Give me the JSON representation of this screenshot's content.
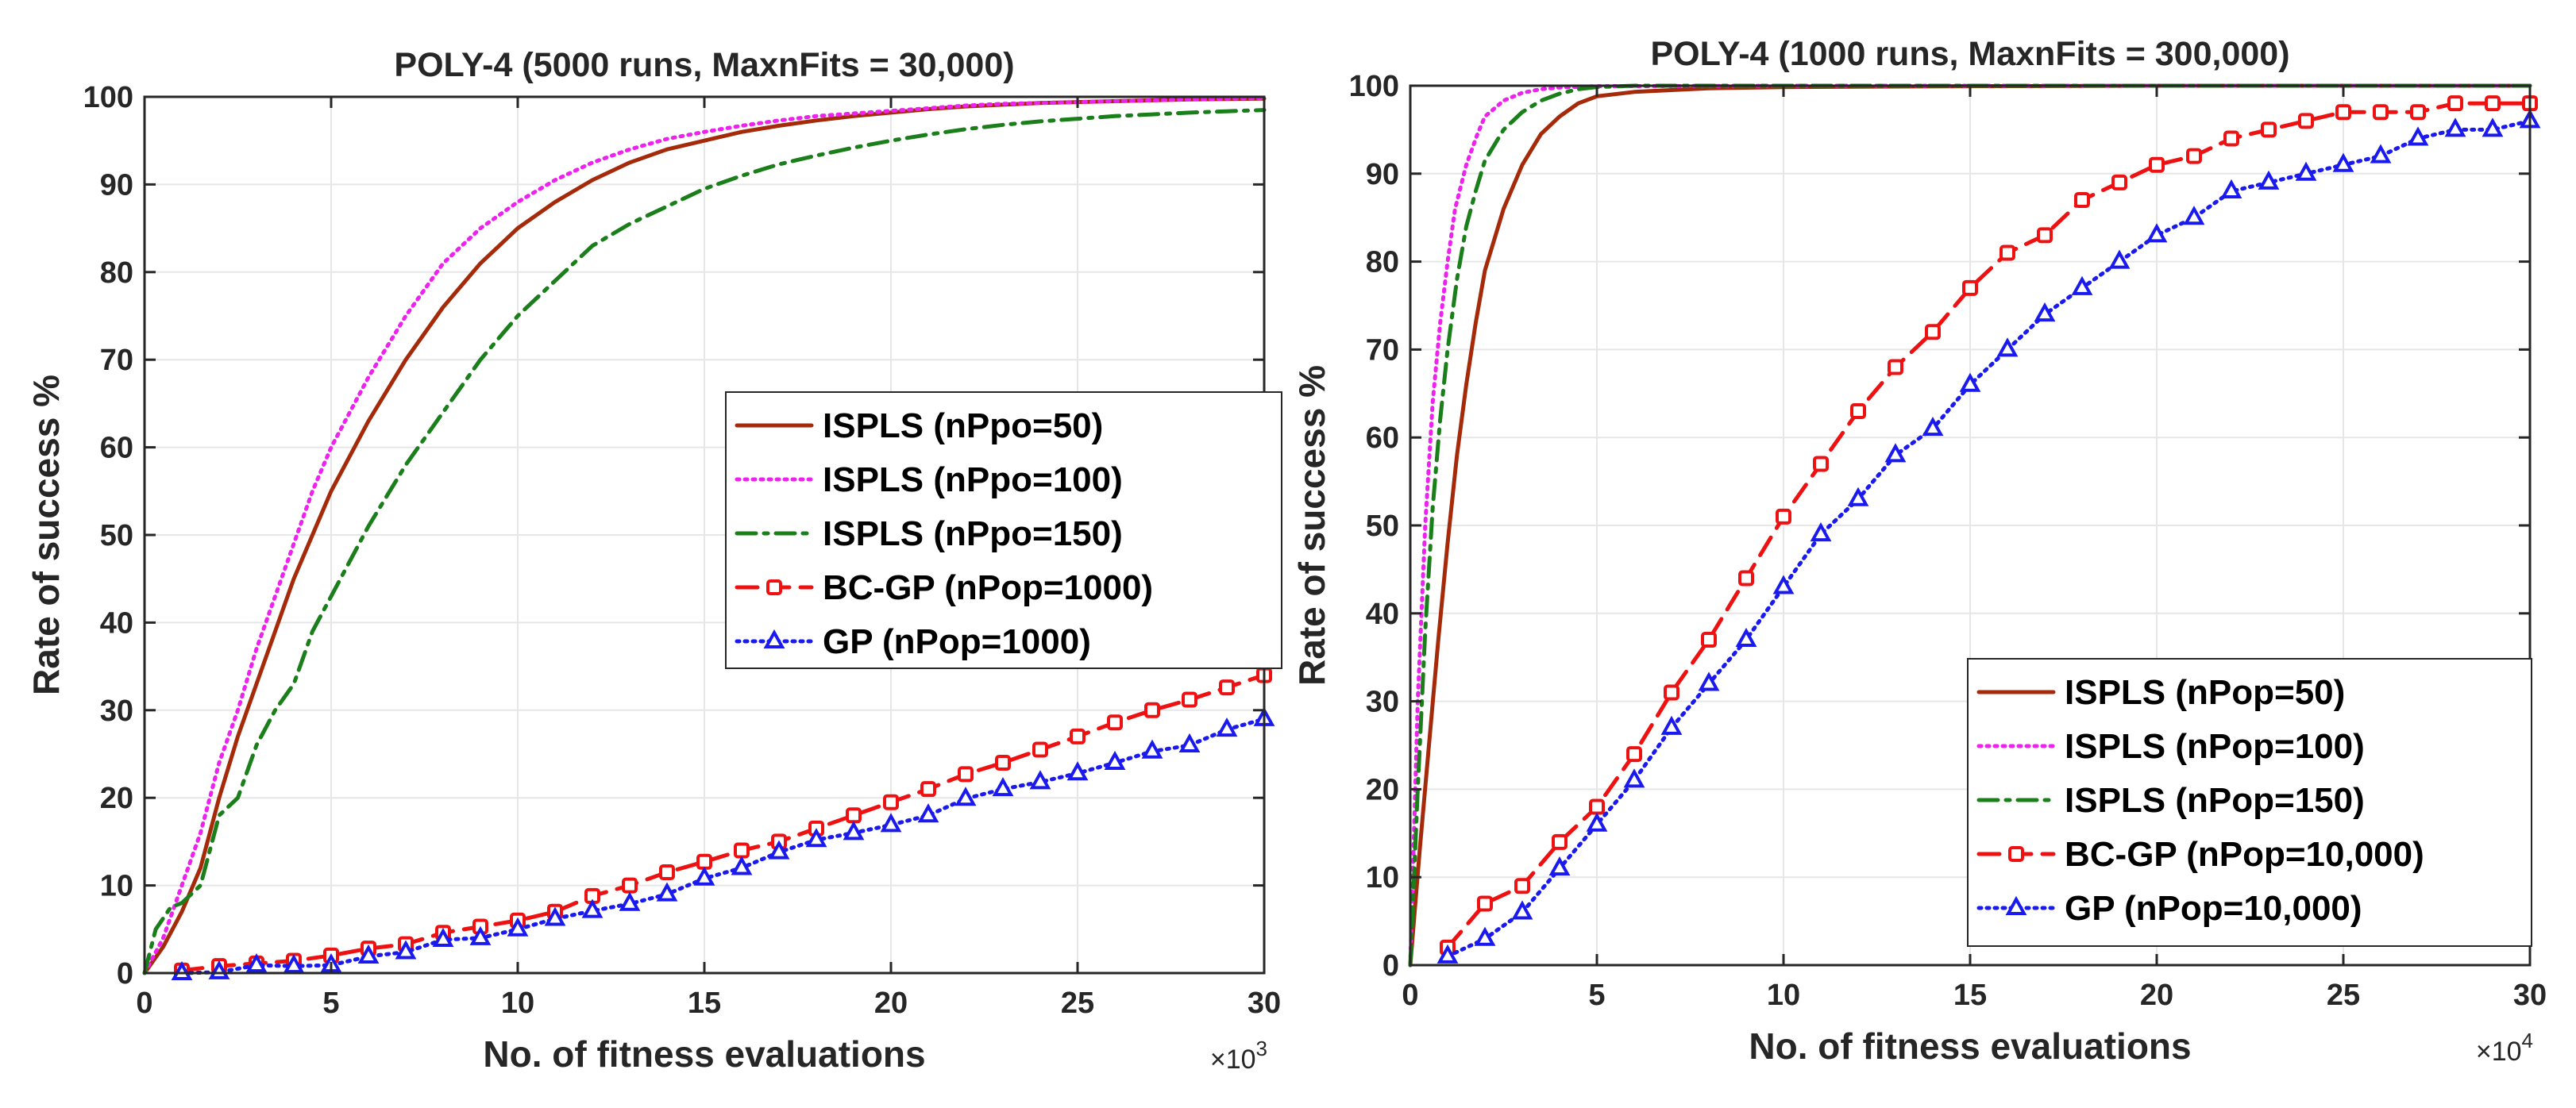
{
  "chart_data": [
    {
      "type": "line",
      "title": "POLY-4 (5000 runs, MaxnFits = 30,000)",
      "xlabel": "No. of fitness evaluations",
      "ylabel": "Rate of success %",
      "x_multiplier": "×10",
      "x_multiplier_exp": "3",
      "xlim": [
        0,
        30
      ],
      "ylim": [
        0,
        100
      ],
      "xticks": [
        0,
        5,
        10,
        15,
        20,
        25,
        30
      ],
      "yticks": [
        0,
        10,
        20,
        30,
        40,
        50,
        60,
        70,
        80,
        90,
        100
      ],
      "grid": true,
      "legend_position": "center-right",
      "series": [
        {
          "name": "ISPLS (nPpo=50)",
          "color": "#a52a0a",
          "style": "solid",
          "marker": "none",
          "x": [
            0,
            0.5,
            1,
            1.5,
            2,
            2.5,
            3,
            3.5,
            4,
            4.5,
            5,
            6,
            7,
            8,
            9,
            10,
            11,
            12,
            13,
            14,
            15,
            16,
            17,
            18,
            19,
            20,
            21,
            22,
            23,
            24,
            25,
            26,
            27,
            28,
            29,
            30
          ],
          "y": [
            0,
            3,
            7,
            12,
            20,
            27,
            33,
            39,
            45,
            50,
            55,
            63,
            70,
            76,
            81,
            85,
            88,
            90.5,
            92.5,
            94,
            95,
            96,
            96.7,
            97.3,
            97.8,
            98.2,
            98.6,
            98.9,
            99.1,
            99.3,
            99.4,
            99.5,
            99.6,
            99.7,
            99.75,
            99.8
          ]
        },
        {
          "name": "ISPLS (nPpo=100)",
          "color": "#ee22ee",
          "style": "dotted",
          "marker": "none",
          "x": [
            0,
            0.5,
            1,
            1.5,
            2,
            2.5,
            3,
            3.5,
            4,
            4.5,
            5,
            6,
            7,
            8,
            9,
            10,
            11,
            12,
            13,
            14,
            15,
            16,
            17,
            18,
            19,
            20,
            21,
            22,
            23,
            24,
            25,
            26,
            27,
            28,
            29,
            30
          ],
          "y": [
            0,
            4,
            10,
            16,
            24,
            30,
            37,
            43,
            49,
            55,
            60,
            68,
            75,
            81,
            85,
            88,
            90.5,
            92.5,
            94,
            95.2,
            96,
            96.7,
            97.3,
            97.8,
            98.1,
            98.4,
            98.7,
            99,
            99.2,
            99.3,
            99.4,
            99.5,
            99.6,
            99.7,
            99.8,
            99.85
          ]
        },
        {
          "name": "ISPLS (nPpo=150)",
          "color": "#1a7f1a",
          "style": "dashdot",
          "marker": "none",
          "x": [
            0,
            0.3,
            0.7,
            1,
            1.5,
            2,
            2.5,
            3,
            3.5,
            4,
            4.5,
            5,
            6,
            7,
            8,
            9,
            10,
            11,
            12,
            13,
            14,
            15,
            16,
            17,
            18,
            19,
            20,
            21,
            22,
            23,
            24,
            25,
            26,
            27,
            28,
            29,
            30
          ],
          "y": [
            0,
            5,
            7.5,
            8,
            10,
            18,
            20,
            26,
            30,
            33,
            39,
            43,
            51,
            58,
            64,
            70,
            75,
            79,
            83,
            85.5,
            87.5,
            89.5,
            91,
            92.3,
            93.3,
            94.2,
            95,
            95.7,
            96.3,
            96.8,
            97.2,
            97.5,
            97.8,
            98,
            98.2,
            98.35,
            98.5
          ]
        },
        {
          "name": "BC-GP (nPop=1000)",
          "color": "#ee1111",
          "style": "dashed",
          "marker": "square",
          "x": [
            1,
            2,
            3,
            4,
            5,
            6,
            7,
            8,
            9,
            10,
            11,
            12,
            13,
            14,
            15,
            16,
            17,
            18,
            19,
            20,
            21,
            22,
            23,
            24,
            25,
            26,
            27,
            28,
            29,
            30
          ],
          "y": [
            0.3,
            0.8,
            1.1,
            1.4,
            2,
            2.8,
            3.3,
            4.6,
            5.3,
            6,
            7,
            8.8,
            10,
            11.5,
            12.7,
            14,
            15,
            16.5,
            18,
            19.5,
            21,
            22.7,
            24,
            25.5,
            27,
            28.6,
            30,
            31.2,
            32.6,
            34
          ]
        },
        {
          "name": "GP (nPop=1000)",
          "color": "#1a1aee",
          "style": "dotted",
          "marker": "triangle",
          "x": [
            1,
            2,
            3,
            4,
            5,
            6,
            7,
            8,
            9,
            10,
            11,
            12,
            13,
            14,
            15,
            16,
            17,
            18,
            19,
            20,
            21,
            22,
            23,
            24,
            25,
            26,
            27,
            28,
            29,
            30
          ],
          "y": [
            0,
            0.1,
            0.9,
            0.8,
            0.9,
            1.9,
            2.4,
            3.8,
            4,
            5,
            6.2,
            7.1,
            7.9,
            9,
            10.8,
            12,
            13.8,
            15.2,
            16,
            16.9,
            18,
            19.9,
            21,
            21.8,
            22.8,
            24,
            25.3,
            26,
            27.8,
            29
          ]
        }
      ]
    },
    {
      "type": "line",
      "title": "POLY-4 (1000 runs, MaxnFits = 300,000)",
      "xlabel": "No. of fitness evaluations",
      "ylabel": "Rate of success %",
      "x_multiplier": "×10",
      "x_multiplier_exp": "4",
      "xlim": [
        0,
        30
      ],
      "ylim": [
        0,
        100
      ],
      "xticks": [
        0,
        5,
        10,
        15,
        20,
        25,
        30
      ],
      "yticks": [
        0,
        10,
        20,
        30,
        40,
        50,
        60,
        70,
        80,
        90,
        100
      ],
      "grid": true,
      "legend_position": "bottom-right",
      "series": [
        {
          "name": "ISPLS (nPop=50)",
          "color": "#a52a0a",
          "style": "solid",
          "marker": "none",
          "x": [
            0,
            0.25,
            0.5,
            0.75,
            1,
            1.25,
            1.5,
            1.75,
            2,
            2.5,
            3,
            3.5,
            4,
            4.5,
            5,
            6,
            7,
            8,
            10,
            15,
            20,
            25,
            30
          ],
          "y": [
            0,
            13,
            25,
            37,
            48,
            58,
            66,
            73,
            79,
            86,
            91,
            94.5,
            96.5,
            98,
            98.8,
            99.3,
            99.5,
            99.7,
            99.85,
            99.95,
            100,
            100,
            100
          ]
        },
        {
          "name": "ISPLS (nPop=100)",
          "color": "#ee22ee",
          "style": "dotted",
          "marker": "none",
          "x": [
            0,
            0.2,
            0.4,
            0.6,
            0.8,
            1,
            1.2,
            1.5,
            1.8,
            2,
            2.5,
            3,
            3.5,
            4,
            5,
            10,
            20,
            30
          ],
          "y": [
            0,
            30,
            50,
            64,
            73,
            80,
            86,
            91,
            94.5,
            96.5,
            98.3,
            99.2,
            99.6,
            99.8,
            99.95,
            100,
            100,
            100
          ]
        },
        {
          "name": "ISPLS (nPop=150)",
          "color": "#1a7f1a",
          "style": "dashdot",
          "marker": "none",
          "x": [
            0,
            0.2,
            0.4,
            0.6,
            0.8,
            1,
            1.25,
            1.5,
            1.75,
            2,
            2.5,
            3,
            3.5,
            4,
            4.5,
            5,
            6,
            10,
            20,
            30
          ],
          "y": [
            0,
            20,
            38,
            52,
            62,
            70,
            78,
            84,
            88,
            91.5,
            95,
            97,
            98.3,
            99.1,
            99.6,
            99.85,
            100,
            100,
            100,
            100
          ]
        },
        {
          "name": "BC-GP (nPop=10,000)",
          "color": "#ee1111",
          "style": "dashed",
          "marker": "square",
          "x": [
            1,
            2,
            3,
            4,
            5,
            6,
            7,
            8,
            9,
            10,
            11,
            12,
            13,
            14,
            15,
            16,
            17,
            18,
            19,
            20,
            21,
            22,
            23,
            24,
            25,
            26,
            27,
            28,
            29,
            30
          ],
          "y": [
            2,
            7,
            9,
            14,
            18,
            24,
            31,
            37,
            44,
            51,
            57,
            63,
            68,
            72,
            77,
            81,
            83,
            87,
            89,
            91,
            92,
            94,
            95,
            96,
            97,
            97,
            97,
            98,
            98,
            98
          ]
        },
        {
          "name": "GP (nPop=10,000)",
          "color": "#1a1aee",
          "style": "dotted",
          "marker": "triangle",
          "x": [
            1,
            2,
            3,
            4,
            5,
            6,
            7,
            8,
            9,
            10,
            11,
            12,
            13,
            14,
            15,
            16,
            17,
            18,
            19,
            20,
            21,
            22,
            23,
            24,
            25,
            26,
            27,
            28,
            29,
            30
          ],
          "y": [
            1,
            3,
            6,
            11,
            16,
            21,
            27,
            32,
            37,
            43,
            49,
            53,
            58,
            61,
            66,
            70,
            74,
            77,
            80,
            83,
            85,
            88,
            89,
            90,
            91,
            92,
            94,
            95,
            95,
            96
          ]
        }
      ]
    }
  ]
}
